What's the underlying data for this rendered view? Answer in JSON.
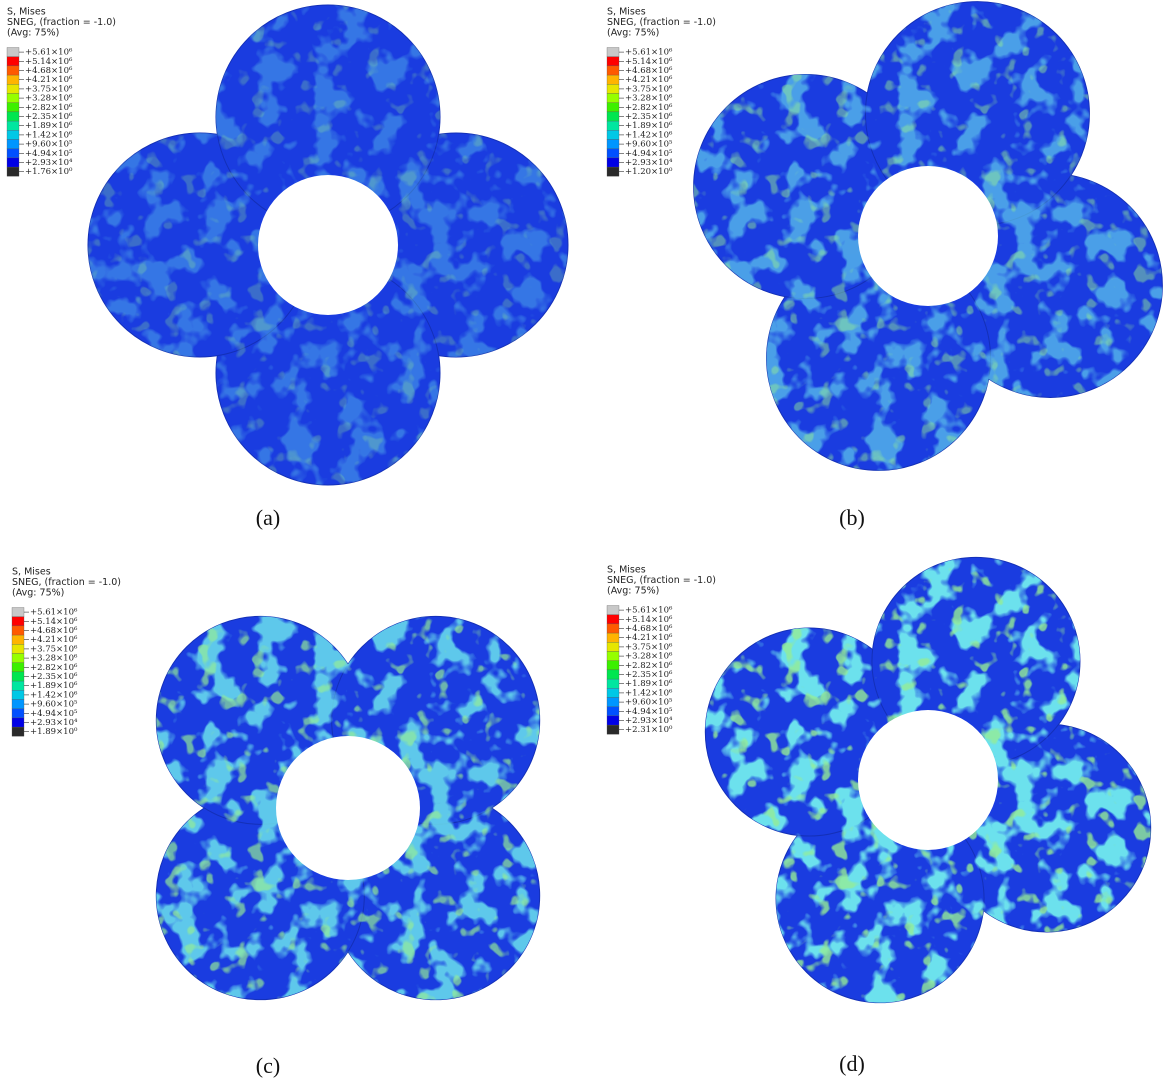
{
  "panels": [
    {
      "legend": {
        "title": [
          "S, Mises",
          "SNEG, (fraction = -1.0)",
          "(Avg: 75%)"
        ],
        "labels": [
          "+5.61×10⁶",
          "+5.14×10⁶",
          "+4.68×10⁶",
          "+4.21×10⁶",
          "+3.75×10⁶",
          "+3.28×10⁶",
          "+2.82×10⁶",
          "+2.35×10⁶",
          "+1.89×10⁶",
          "+1.42×10⁶",
          "+9.60×10⁵",
          "+4.94×10⁵",
          "+2.93×10⁴",
          "+1.76×10⁰"
        ]
      },
      "caption": "(a)"
    },
    {
      "legend": {
        "title": [
          "S, Mises",
          "SNEG, (fraction = -1.0)",
          "(Avg: 75%)"
        ],
        "labels": [
          "+5.61×10⁶",
          "+5.14×10⁶",
          "+4.68×10⁶",
          "+4.21×10⁶",
          "+3.75×10⁶",
          "+3.28×10⁶",
          "+2.82×10⁶",
          "+2.35×10⁶",
          "+1.89×10⁶",
          "+1.42×10⁶",
          "+9.60×10⁵",
          "+4.94×10⁵",
          "+2.93×10⁴",
          "+1.20×10⁰"
        ]
      },
      "caption": "(b)"
    },
    {
      "legend": {
        "title": [
          "S, Mises",
          "SNEG, (fraction = -1.0)",
          "(Avg: 75%)"
        ],
        "labels": [
          "+5.61×10⁶",
          "+5.14×10⁶",
          "+4.68×10⁶",
          "+4.21×10⁶",
          "+3.75×10⁶",
          "+3.28×10⁶",
          "+2.82×10⁶",
          "+2.35×10⁶",
          "+1.89×10⁶",
          "+1.42×10⁶",
          "+9.60×10⁵",
          "+4.94×10⁵",
          "+2.93×10⁴",
          "+1.89×10⁰"
        ]
      },
      "caption": "(c)"
    },
    {
      "legend": {
        "title": [
          "S, Mises",
          "SNEG, (fraction = -1.0)",
          "(Avg: 75%)"
        ],
        "labels": [
          "+5.61×10⁶",
          "+5.14×10⁶",
          "+4.68×10⁶",
          "+4.21×10⁶",
          "+3.75×10⁶",
          "+3.28×10⁶",
          "+2.82×10⁶",
          "+2.35×10⁶",
          "+1.89×10⁶",
          "+1.42×10⁶",
          "+9.60×10⁵",
          "+4.94×10⁵",
          "+2.93×10⁴",
          "+2.31×10⁰"
        ]
      },
      "caption": "(d)"
    }
  ]
}
